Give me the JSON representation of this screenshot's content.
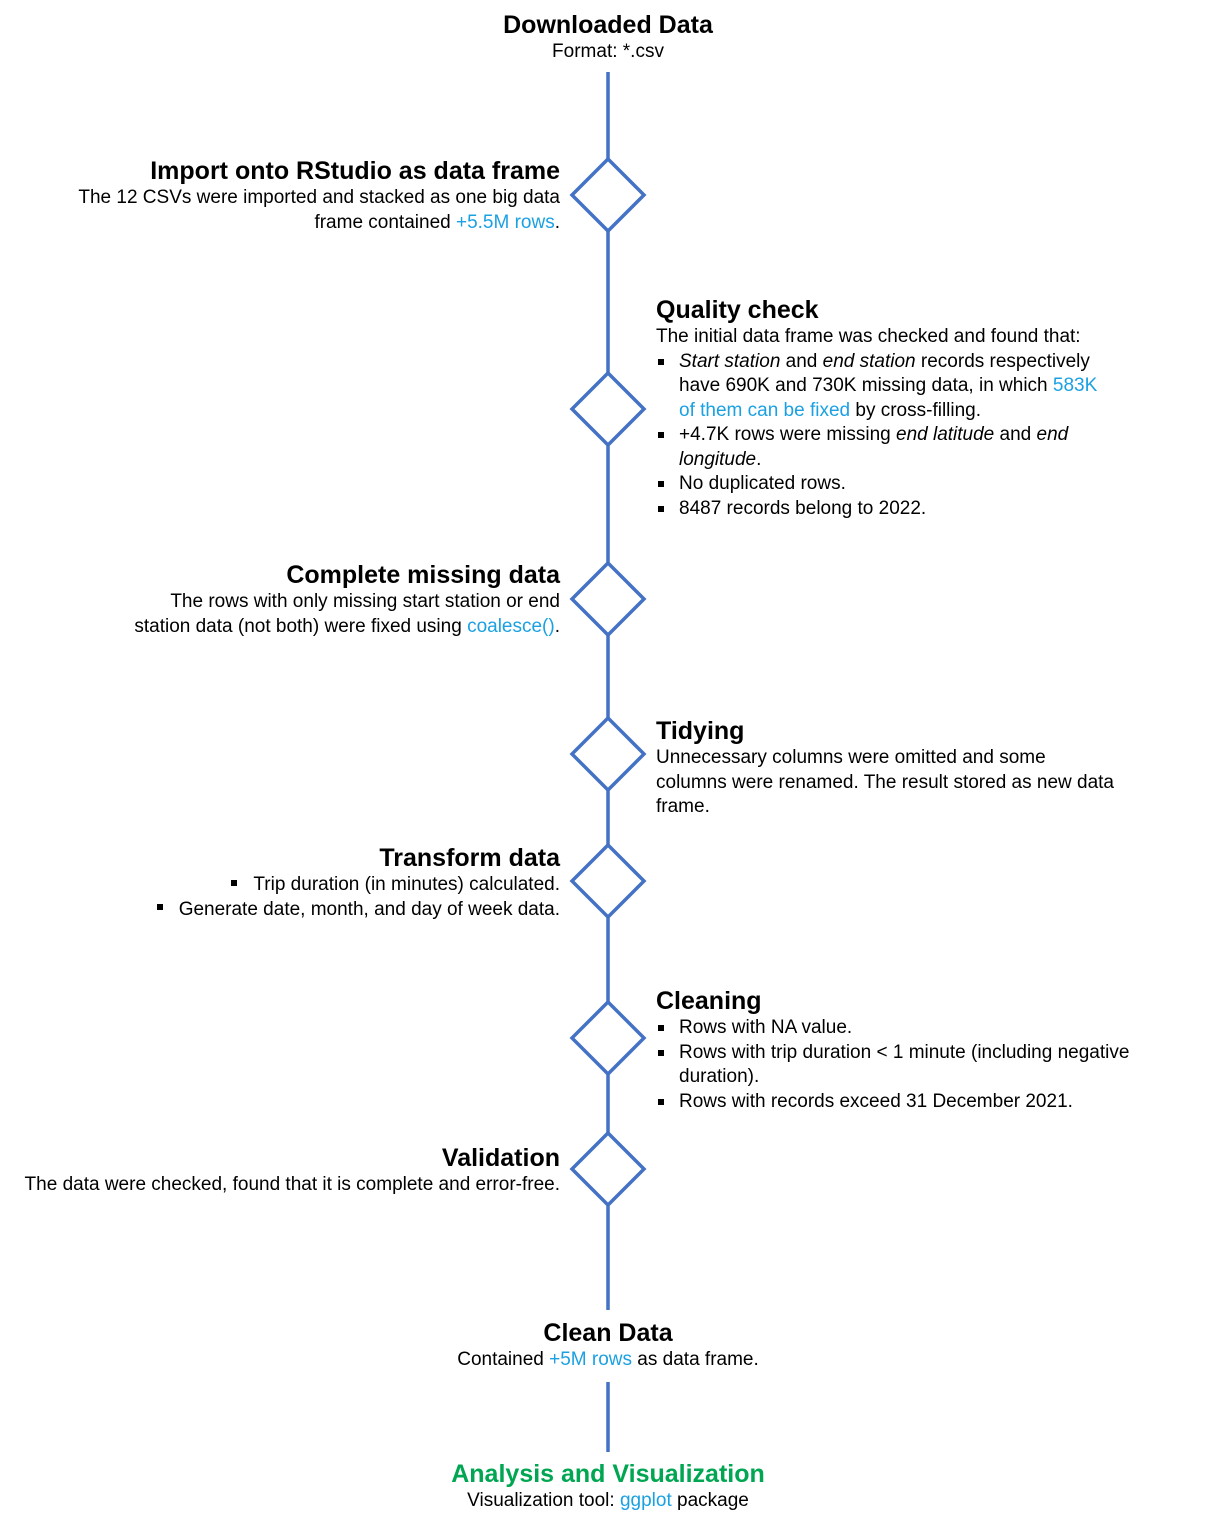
{
  "colors": {
    "line": "#4472c4",
    "highlight": "#1ba1e2",
    "final_title": "#00a651"
  },
  "start": {
    "title": "Downloaded Data",
    "subtitle": "Format: *.csv"
  },
  "steps": [
    {
      "id": "import",
      "title": "Import onto RStudio as data frame",
      "text_before": "The 12 CSVs were imported and stacked as one big data frame contained ",
      "highlight": "+5.5M rows",
      "text_after": "."
    },
    {
      "id": "quality",
      "title": "Quality check",
      "intro": "The initial data frame was checked and found that:",
      "bullets": [
        {
          "i1": "Start station",
          "t1": " and ",
          "i2": "end station",
          "t2": " records respectively have 690K and 730K missing data, in which ",
          "h": "583K of them can be fixed",
          "t3": " by cross-filling."
        },
        {
          "t1": "+4.7K rows were missing ",
          "i1": "end latitude",
          "t2": " and ",
          "i2": "end longitude",
          "t3": "."
        },
        {
          "text": "No duplicated rows."
        },
        {
          "text": "8487 records belong to 2022."
        }
      ]
    },
    {
      "id": "complete",
      "title": "Complete missing data",
      "text_before": "The rows with only missing start station or end station data (not both) were fixed using ",
      "highlight": "coalesce()",
      "text_after": "."
    },
    {
      "id": "tidying",
      "title": "Tidying",
      "text": "Unnecessary columns were omitted and some columns were renamed. The result stored as new data frame."
    },
    {
      "id": "transform",
      "title": "Transform data",
      "bullets": [
        "Trip duration (in minutes) calculated.",
        "Generate date, month, and day of week data."
      ]
    },
    {
      "id": "cleaning",
      "title": "Cleaning",
      "bullets": [
        "Rows with NA value.",
        "Rows with trip duration < 1 minute (including negative duration).",
        "Rows with records exceed 31 December 2021."
      ]
    },
    {
      "id": "validation",
      "title": "Validation",
      "text": "The data were checked, found that it is complete and error-free."
    }
  ],
  "clean": {
    "title": "Clean Data",
    "text_before": "Contained ",
    "highlight": "+5M rows",
    "text_after": " as data frame."
  },
  "final": {
    "title": "Analysis and Visualization",
    "text_before": "Visualization tool: ",
    "highlight": "ggplot",
    "text_after": " package"
  }
}
